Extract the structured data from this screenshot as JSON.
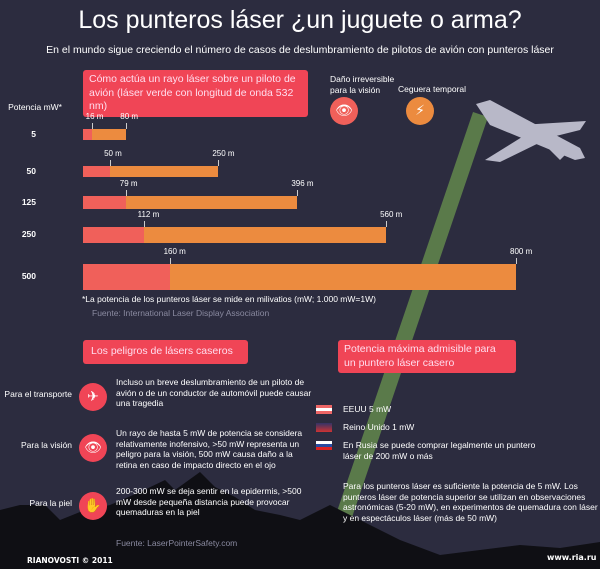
{
  "title": "Los punteros láser ¿un juguete o arma?",
  "subtitle": "En el mundo sigue creciendo el número de casos de deslumbramiento de pilotos de avión con punteros láser",
  "colors": {
    "background": "#2c2c3f",
    "accent_red": "#f04556",
    "damage": "#f0605a",
    "blindness": "#ec8b3f",
    "laser": "#5a7a4a"
  },
  "chart_data": {
    "type": "bar",
    "title": "Cómo actúa un rayo láser sobre un piloto de avión (láser verde con longitud de onda 532 nm)",
    "ylabel": "Potencia mW*",
    "xunit": "m",
    "categories": [
      "5",
      "50",
      "125",
      "250",
      "500"
    ],
    "series": [
      {
        "name": "Daño irreversible para la visión",
        "values": [
          16,
          50,
          79,
          112,
          160
        ]
      },
      {
        "name": "Ceguera temporal",
        "values": [
          80,
          250,
          396,
          560,
          800
        ]
      }
    ],
    "labels_inner": [
      "16 m",
      "50 m",
      "79 m",
      "112 m",
      "160 m"
    ],
    "labels_outer": [
      "80 m",
      "250 m",
      "396 m",
      "560 m",
      "800 m"
    ],
    "legend": "top-right"
  },
  "legend": {
    "damage": "Daño irreversible para la visión",
    "blindness": "Ceguera temporal"
  },
  "footnote": "*La potencia de los punteros láser se mide en milivatios (mW; 1.000 mW=1W)",
  "source1": "Fuente: International Laser Display Association",
  "dangers": {
    "header": "Los peligros de lásers caseros",
    "items": [
      {
        "label": "Para el transporte",
        "icon": "airplane-icon",
        "text": "Incluso un breve deslumbramiento de un piloto de avión o de un conductor de automóvil puede causar una tragedia"
      },
      {
        "label": "Para la visión",
        "icon": "eye-icon",
        "text": "Un rayo de hasta 5 mW de potencia se considera relativamente inofensivo, >50 mW representa un peligro para la visión, 500 mW causa daño a la retina en caso de impacto directo en el ojo"
      },
      {
        "label": "Para la piel",
        "icon": "hand-icon",
        "text": "200-300 mW se deja sentir en la epidermis, >500 mW desde pequeña distancia puede provocar quemaduras en la piel"
      }
    ],
    "source": "Fuente: LaserPointerSafety.com"
  },
  "max_power": {
    "header": "Potencia máxima admisible para un puntero láser casero",
    "items": [
      {
        "flag": "us-flag-icon",
        "text": "EEUU 5 mW"
      },
      {
        "flag": "uk-flag-icon",
        "text": "Reino Unido 1 mW"
      },
      {
        "flag": "russia-flag-icon",
        "text": "En Rusia se puede comprar legalmente un puntero láser de 200 mW o más"
      }
    ],
    "note": "Para los punteros láser es suficiente la potencia de 5 mW. Los punteros láser de potencia superior se utilizan en observaciones astronómicas (5-20 mW), en experimentos de quemadura con láser y en espectáculos láser (más de 50 mW)"
  },
  "credit": "RIANOVOSTI © 2011",
  "url": "www.ria.ru"
}
